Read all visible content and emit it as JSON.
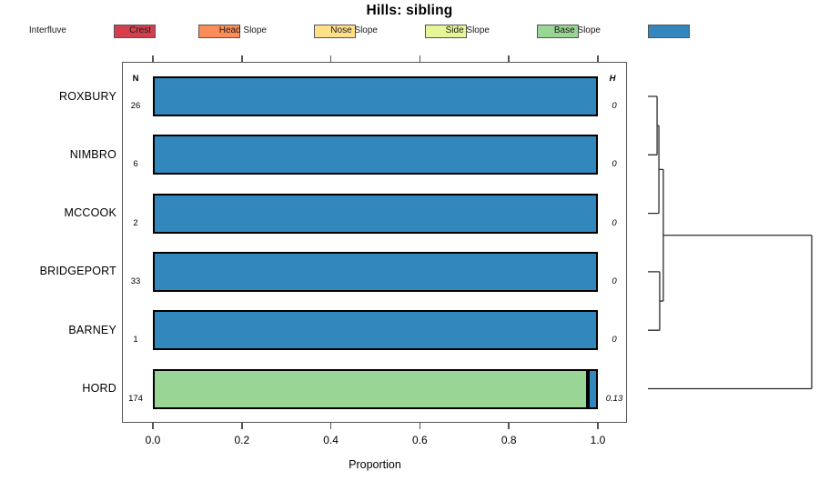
{
  "chart_data": {
    "type": "bar",
    "variant": "horizontal-stacked-proportion-with-dendrogram",
    "title": "Hills: sibling",
    "xlabel": "Proportion",
    "xlim": [
      0,
      1
    ],
    "x_ticks": [
      "0.0",
      "0.2",
      "0.4",
      "0.6",
      "0.8",
      "1.0"
    ],
    "x_tick_values": [
      0,
      0.2,
      0.4,
      0.6,
      0.8,
      1.0
    ],
    "grid": false,
    "legend_position": "top",
    "n_header": "N",
    "h_header": "H",
    "classes": [
      {
        "label": "Interfluve",
        "color": "#D53E4F"
      },
      {
        "label": "Crest",
        "color": "#FC8D59"
      },
      {
        "label": "Head Slope",
        "color": "#FEE08B"
      },
      {
        "label": "Nose Slope",
        "color": "#E6F598"
      },
      {
        "label": "Side Slope",
        "color": "#99D594"
      },
      {
        "label": "Base Slope",
        "color": "#3288BD"
      }
    ],
    "rows": [
      {
        "category": "ROXBURY",
        "n": "26",
        "h": "0",
        "segments": [
          {
            "class": "Base Slope",
            "value": 1.0
          }
        ]
      },
      {
        "category": "NIMBRO",
        "n": "6",
        "h": "0",
        "segments": [
          {
            "class": "Base Slope",
            "value": 1.0
          }
        ]
      },
      {
        "category": "MCCOOK",
        "n": "2",
        "h": "0",
        "segments": [
          {
            "class": "Base Slope",
            "value": 1.0
          }
        ]
      },
      {
        "category": "BRIDGEPORT",
        "n": "33",
        "h": "0",
        "segments": [
          {
            "class": "Base Slope",
            "value": 1.0
          }
        ]
      },
      {
        "category": "BARNEY",
        "n": "1",
        "h": "0",
        "segments": [
          {
            "class": "Base Slope",
            "value": 1.0
          }
        ]
      },
      {
        "category": "HORD",
        "n": "174",
        "h": "0.13",
        "segments": [
          {
            "class": "Side Slope",
            "value": 0.977
          },
          {
            "class": "Base Slope",
            "value": 0.023
          }
        ]
      }
    ],
    "dendrogram": {
      "side": "right",
      "leaf_order": [
        "ROXBURY",
        "NIMBRO",
        "MCCOOK",
        "BRIDGEPORT",
        "BARNEY",
        "HORD"
      ],
      "merges": [
        {
          "a": "ROXBURY",
          "b": "NIMBRO",
          "height": 0.056
        },
        {
          "a": "m0",
          "b": "MCCOOK",
          "height": 0.067
        },
        {
          "a": "BRIDGEPORT",
          "b": "BARNEY",
          "height": 0.072
        },
        {
          "a": "m1",
          "b": "m2",
          "height": 0.094
        },
        {
          "a": "m3",
          "b": "HORD",
          "height": 1.0
        }
      ],
      "line_color": "#2b2b2b"
    }
  }
}
